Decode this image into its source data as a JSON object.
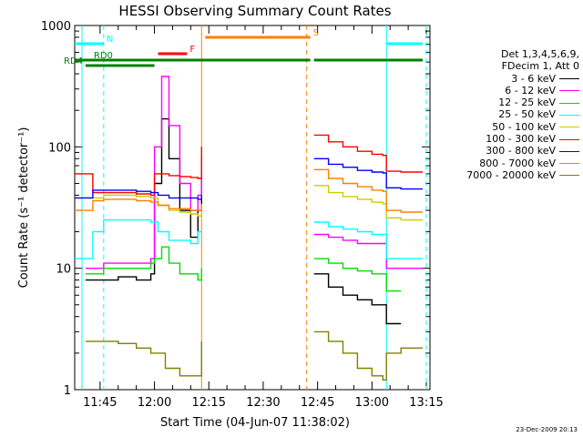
{
  "chart_data": {
    "type": "line",
    "title": "HESSI Observing Summary Count Rates",
    "xlabel": "Start Time (04-Jun-07 11:38:02)",
    "ylabel": "Count Rate (s⁻¹ detector⁻¹)",
    "yscale": "log",
    "ylim": [
      1,
      1000
    ],
    "xlim": [
      "11:38",
      "13:16"
    ],
    "x_ticks": [
      "11:45",
      "12:00",
      "12:15",
      "12:30",
      "12:45",
      "13:00",
      "13:15"
    ],
    "y_ticks": [
      "1",
      "10",
      "100",
      "1000"
    ],
    "grid": false,
    "legend_position": "right",
    "legend_header": [
      "Det 1,3,4,5,6,9,",
      "FDecim 1, Att 0"
    ],
    "timestamp": "23-Dec-2009 20:13",
    "series": [
      {
        "name": "3 - 6 keV",
        "color": "#000000",
        "points": [
          [
            "11:41",
            8
          ],
          [
            "11:46",
            8
          ],
          [
            "11:50",
            8.5
          ],
          [
            "11:55",
            8
          ],
          [
            "11:59",
            9
          ],
          [
            "12:00",
            50
          ],
          [
            "12:02",
            170
          ],
          [
            "12:04",
            80
          ],
          [
            "12:07",
            30
          ],
          [
            "12:10",
            18
          ],
          [
            "12:12",
            30
          ],
          [
            "12:13",
            80
          ],
          [
            "12:44",
            9
          ],
          [
            "12:48",
            7
          ],
          [
            "12:52",
            6
          ],
          [
            "12:56",
            5.5
          ],
          [
            "13:00",
            5
          ],
          [
            "13:03",
            5
          ],
          [
            "13:04",
            3.5
          ],
          [
            "13:08",
            3.5
          ]
        ]
      },
      {
        "name": "6 - 12 keV",
        "color": "#ff00ff",
        "points": [
          [
            "11:41",
            10
          ],
          [
            "11:46",
            11
          ],
          [
            "11:50",
            11
          ],
          [
            "11:55",
            11
          ],
          [
            "11:59",
            12
          ],
          [
            "12:00",
            100
          ],
          [
            "12:02",
            380
          ],
          [
            "12:04",
            150
          ],
          [
            "12:07",
            50
          ],
          [
            "12:10",
            30
          ],
          [
            "12:12",
            40
          ],
          [
            "12:13",
            80
          ],
          [
            "12:44",
            19
          ],
          [
            "12:48",
            18
          ],
          [
            "12:52",
            17
          ],
          [
            "12:56",
            16
          ],
          [
            "13:00",
            16
          ],
          [
            "13:03",
            16
          ],
          [
            "13:04",
            10
          ],
          [
            "13:08",
            10
          ],
          [
            "13:14",
            10
          ]
        ]
      },
      {
        "name": "12 - 25 keV",
        "color": "#00dd00",
        "points": [
          [
            "11:41",
            9
          ],
          [
            "11:46",
            10
          ],
          [
            "11:50",
            10
          ],
          [
            "11:55",
            10
          ],
          [
            "11:59",
            11
          ],
          [
            "12:00",
            12
          ],
          [
            "12:02",
            15
          ],
          [
            "12:04",
            11
          ],
          [
            "12:07",
            9
          ],
          [
            "12:10",
            9
          ],
          [
            "12:12",
            8
          ],
          [
            "12:13",
            10
          ],
          [
            "12:44",
            12
          ],
          [
            "12:48",
            11
          ],
          [
            "12:52",
            10
          ],
          [
            "12:56",
            9.5
          ],
          [
            "13:00",
            9
          ],
          [
            "13:03",
            9
          ],
          [
            "13:04",
            6.5
          ],
          [
            "13:08",
            6.5
          ]
        ]
      },
      {
        "name": "25 - 50 keV",
        "color": "#00ffff",
        "points": [
          [
            "11:38",
            12
          ],
          [
            "11:41",
            12
          ],
          [
            "11:43",
            20
          ],
          [
            "11:46",
            25
          ],
          [
            "11:50",
            25
          ],
          [
            "11:55",
            25
          ],
          [
            "11:59",
            24
          ],
          [
            "12:01",
            20
          ],
          [
            "12:04",
            17
          ],
          [
            "12:07",
            17
          ],
          [
            "12:10",
            16
          ],
          [
            "12:12",
            20
          ],
          [
            "12:13",
            20
          ],
          [
            "12:44",
            24
          ],
          [
            "12:48",
            22
          ],
          [
            "12:52",
            21
          ],
          [
            "12:56",
            20
          ],
          [
            "13:00",
            19
          ],
          [
            "13:03",
            19
          ],
          [
            "13:04",
            12
          ],
          [
            "13:08",
            12
          ],
          [
            "13:14",
            12
          ]
        ]
      },
      {
        "name": "50 - 100 keV",
        "color": "#cccc00",
        "points": [
          [
            "11:41",
            38
          ],
          [
            "11:46",
            40
          ],
          [
            "11:50",
            40
          ],
          [
            "11:55",
            39
          ],
          [
            "11:59",
            38
          ],
          [
            "12:01",
            33
          ],
          [
            "12:04",
            30
          ],
          [
            "12:07",
            29
          ],
          [
            "12:10",
            28
          ],
          [
            "12:12",
            27
          ],
          [
            "12:13",
            32
          ],
          [
            "12:44",
            48
          ],
          [
            "12:48",
            42
          ],
          [
            "12:52",
            39
          ],
          [
            "12:56",
            37
          ],
          [
            "13:00",
            35
          ],
          [
            "13:03",
            34
          ],
          [
            "13:04",
            26
          ],
          [
            "13:08",
            25
          ],
          [
            "13:14",
            25
          ]
        ]
      },
      {
        "name": "100 - 300 keV",
        "color": "#ff0000",
        "points": [
          [
            "11:38",
            60
          ],
          [
            "11:41",
            60
          ],
          [
            "11:43",
            42
          ],
          [
            "11:46",
            42
          ],
          [
            "11:50",
            42
          ],
          [
            "11:55",
            41
          ],
          [
            "11:59",
            40
          ],
          [
            "12:00",
            60
          ],
          [
            "12:04",
            58
          ],
          [
            "12:07",
            57
          ],
          [
            "12:10",
            56
          ],
          [
            "12:12",
            55
          ],
          [
            "12:13",
            100
          ],
          [
            "12:44",
            125
          ],
          [
            "12:48",
            110
          ],
          [
            "12:52",
            100
          ],
          [
            "12:56",
            92
          ],
          [
            "13:00",
            87
          ],
          [
            "13:03",
            85
          ],
          [
            "13:04",
            63
          ],
          [
            "13:08",
            62
          ],
          [
            "13:14",
            62
          ]
        ]
      },
      {
        "name": "300 - 800 keV",
        "color": "#0000ff",
        "points": [
          [
            "11:38",
            38
          ],
          [
            "11:41",
            38
          ],
          [
            "11:43",
            44
          ],
          [
            "11:46",
            44
          ],
          [
            "11:50",
            44
          ],
          [
            "11:55",
            43
          ],
          [
            "11:59",
            42
          ],
          [
            "12:01",
            40
          ],
          [
            "12:04",
            38
          ],
          [
            "12:07",
            38
          ],
          [
            "12:10",
            38
          ],
          [
            "12:12",
            37
          ],
          [
            "12:13",
            40
          ],
          [
            "12:44",
            80
          ],
          [
            "12:48",
            72
          ],
          [
            "12:52",
            68
          ],
          [
            "12:56",
            64
          ],
          [
            "13:00",
            62
          ],
          [
            "13:03",
            61
          ],
          [
            "13:04",
            46
          ],
          [
            "13:08",
            45
          ],
          [
            "13:14",
            45
          ]
        ]
      },
      {
        "name": "800 - 7000 keV",
        "color": "#ff8000",
        "points": [
          [
            "11:38",
            30
          ],
          [
            "11:41",
            30
          ],
          [
            "11:43",
            36
          ],
          [
            "11:46",
            37
          ],
          [
            "11:50",
            37
          ],
          [
            "11:55",
            36
          ],
          [
            "11:59",
            35
          ],
          [
            "12:01",
            33
          ],
          [
            "12:04",
            31
          ],
          [
            "12:07",
            31
          ],
          [
            "12:10",
            30
          ],
          [
            "12:12",
            30
          ],
          [
            "12:13",
            34
          ],
          [
            "12:44",
            65
          ],
          [
            "12:48",
            55
          ],
          [
            "12:52",
            50
          ],
          [
            "12:56",
            47
          ],
          [
            "13:00",
            44
          ],
          [
            "13:03",
            43
          ],
          [
            "13:04",
            30
          ],
          [
            "13:08",
            29
          ],
          [
            "13:14",
            29
          ]
        ]
      },
      {
        "name": "7000 - 20000 keV",
        "color": "#808000",
        "points": [
          [
            "11:41",
            2.5
          ],
          [
            "11:46",
            2.5
          ],
          [
            "11:50",
            2.4
          ],
          [
            "11:55",
            2.2
          ],
          [
            "11:59",
            2
          ],
          [
            "12:03",
            1.5
          ],
          [
            "12:07",
            1.3
          ],
          [
            "12:10",
            1.3
          ],
          [
            "12:12",
            1.3
          ],
          [
            "12:13",
            2.5
          ],
          [
            "12:44",
            3
          ],
          [
            "12:48",
            2.5
          ],
          [
            "12:52",
            2
          ],
          [
            "12:56",
            1.5
          ],
          [
            "13:00",
            1.3
          ],
          [
            "13:03",
            1.2
          ],
          [
            "13:04",
            2
          ],
          [
            "13:08",
            2.2
          ],
          [
            "13:14",
            2.2
          ]
        ]
      }
    ],
    "flags": [
      {
        "name": "N",
        "color": "#00ffff",
        "segments": [
          [
            "11:38",
            "11:46"
          ],
          [
            "13:04",
            "13:14"
          ]
        ]
      },
      {
        "name": "F",
        "color": "#ff0000",
        "segments": [
          [
            "12:01",
            "12:09"
          ]
        ]
      },
      {
        "name": "S",
        "color": "#ff8000",
        "segments": [
          [
            "12:14",
            "12:43"
          ]
        ]
      },
      {
        "name": "RD0",
        "color": "#008000",
        "segments": [
          [
            "11:38",
            "12:43"
          ],
          [
            "12:44",
            "13:14"
          ]
        ]
      },
      {
        "name": "RD4",
        "color": "#008000",
        "segments": [
          [
            "11:41",
            "12:00"
          ]
        ]
      }
    ],
    "vertical_markers": [
      {
        "time": "11:40",
        "color": "#00ffff",
        "style": "solid"
      },
      {
        "time": "11:46",
        "color": "#00ffff",
        "style": "dashed"
      },
      {
        "time": "12:13",
        "color": "#ff8000",
        "style": "solid"
      },
      {
        "time": "12:42",
        "color": "#ff8000",
        "style": "dashed"
      },
      {
        "time": "13:04",
        "color": "#00ffff",
        "style": "solid"
      },
      {
        "time": "13:15",
        "color": "#00ffff",
        "style": "dashed"
      }
    ]
  }
}
